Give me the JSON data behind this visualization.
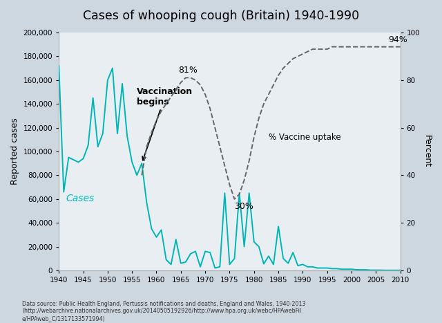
{
  "title": "Cases of whooping cough (Britain) 1940-1990",
  "bg_color": "#d0dae3",
  "cases_color": "#00b5b5",
  "vaccine_color": "#666666",
  "cases_label": "Cases",
  "vaccine_label": "% Vaccine uptake",
  "ylabel_left": "Reported cases",
  "ylabel_right": "Percent",
  "annotation_vaccination": "Vaccination\nbegins",
  "annotation_81": "81%",
  "annotation_30": "30%",
  "annotation_94": "94%",
  "footnote": "Data source: Public Health England, Pertussis notifications and deaths, England and Wales, 1940-2013\n(http://webarchive.nationalarchives.gov.uk/20140505192926/http://www.hpa.org.uk/webc/HPAwebFil\ne/HPAweb_C/1317133571994)",
  "cases_years": [
    1940,
    1941,
    1942,
    1943,
    1944,
    1945,
    1946,
    1947,
    1948,
    1949,
    1950,
    1951,
    1952,
    1953,
    1954,
    1955,
    1956,
    1957,
    1958,
    1959,
    1960,
    1961,
    1962,
    1963,
    1964,
    1965,
    1966,
    1967,
    1968,
    1969,
    1970,
    1971,
    1972,
    1973,
    1974,
    1975,
    1976,
    1977,
    1978,
    1979,
    1980,
    1981,
    1982,
    1983,
    1984,
    1985,
    1986,
    1987,
    1988,
    1989,
    1990,
    1991,
    1992,
    1993,
    1994,
    1995,
    1996,
    1997,
    1998,
    1999,
    2000,
    2001,
    2002,
    2003,
    2004,
    2005,
    2006,
    2007,
    2008,
    2009,
    2010
  ],
  "cases_values": [
    172000,
    66000,
    95000,
    93000,
    91000,
    94000,
    105000,
    145000,
    104000,
    115000,
    160000,
    170000,
    115000,
    157000,
    113000,
    91000,
    80000,
    90000,
    57000,
    35000,
    28000,
    34000,
    9000,
    5000,
    26000,
    6000,
    7000,
    14000,
    16000,
    3000,
    16000,
    15000,
    2000,
    3000,
    65000,
    5000,
    10000,
    65000,
    20000,
    65000,
    24000,
    20000,
    5500,
    12000,
    5000,
    37000,
    10000,
    6000,
    15000,
    4000,
    5000,
    3000,
    3000,
    2000,
    2000,
    2000,
    1500,
    1500,
    1000,
    1000,
    1000,
    600,
    500,
    500,
    200,
    200,
    200,
    100,
    100,
    100,
    100
  ],
  "vaccine_years": [
    1957,
    1958,
    1959,
    1960,
    1961,
    1962,
    1963,
    1964,
    1965,
    1966,
    1967,
    1968,
    1969,
    1970,
    1971,
    1972,
    1973,
    1974,
    1975,
    1976,
    1977,
    1978,
    1979,
    1980,
    1981,
    1982,
    1983,
    1984,
    1985,
    1986,
    1987,
    1988,
    1989,
    1990,
    1991,
    1992,
    1993,
    1994,
    1995,
    1996,
    1997,
    1998,
    1999,
    2000,
    2001,
    2002,
    2003,
    2004,
    2005,
    2006,
    2007,
    2008,
    2009,
    2010
  ],
  "vaccine_values": [
    40,
    52,
    58,
    63,
    67,
    70,
    73,
    76,
    79,
    81,
    81,
    80,
    78,
    74,
    68,
    60,
    52,
    44,
    36,
    30,
    32,
    38,
    46,
    56,
    64,
    70,
    74,
    78,
    82,
    85,
    87,
    89,
    90,
    91,
    92,
    93,
    93,
    93,
    93,
    94,
    94,
    94,
    94,
    94,
    94,
    94,
    94,
    94,
    94,
    94,
    94,
    94,
    94,
    94
  ],
  "ylim_left": [
    0,
    200000
  ],
  "ylim_right": [
    0,
    100
  ],
  "xlim": [
    1940,
    2010
  ]
}
